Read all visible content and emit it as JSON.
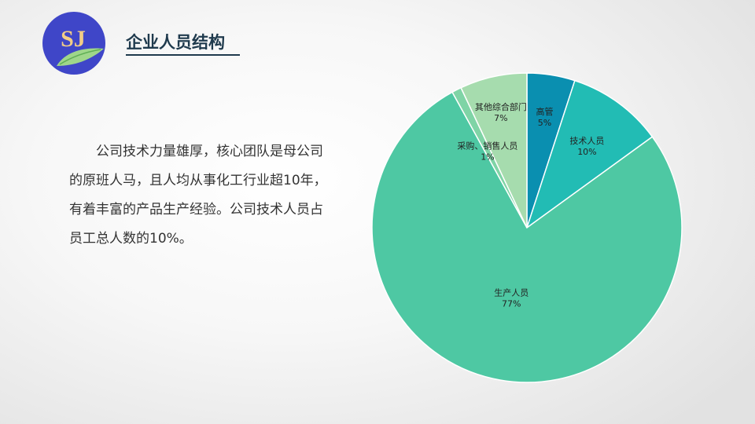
{
  "logo": {
    "text": "SJ",
    "color_circle": "#3f46c8",
    "color_text": "#f2cd86",
    "color_leaf": "#9fd68a"
  },
  "header": {
    "title": "企业人员结构"
  },
  "body": {
    "paragraph": "公司技术力量雄厚，核心团队是母公司的原班人马，且人均从事化工行业超10年，有着丰富的产品生产经验。公司技术人员占员工总人数的10%。"
  },
  "chart_data": {
    "type": "pie",
    "title": "",
    "slices": [
      {
        "label": "高管",
        "value": 5,
        "pct_label": "5%",
        "color": "#0a8fb0"
      },
      {
        "label": "技术人员",
        "value": 10,
        "pct_label": "10%",
        "color": "#22bcb4"
      },
      {
        "label": "生产人员",
        "value": 77,
        "pct_label": "77%",
        "color": "#4ec8a3"
      },
      {
        "label": "采购、销售人员",
        "value": 1,
        "pct_label": "1%",
        "color": "#7fd4a6"
      },
      {
        "label": "其他综合部门",
        "value": 7,
        "pct_label": "7%",
        "color": "#a6dcae"
      }
    ],
    "start_angle_deg": 0,
    "direction": "clockwise",
    "legend": "none"
  }
}
